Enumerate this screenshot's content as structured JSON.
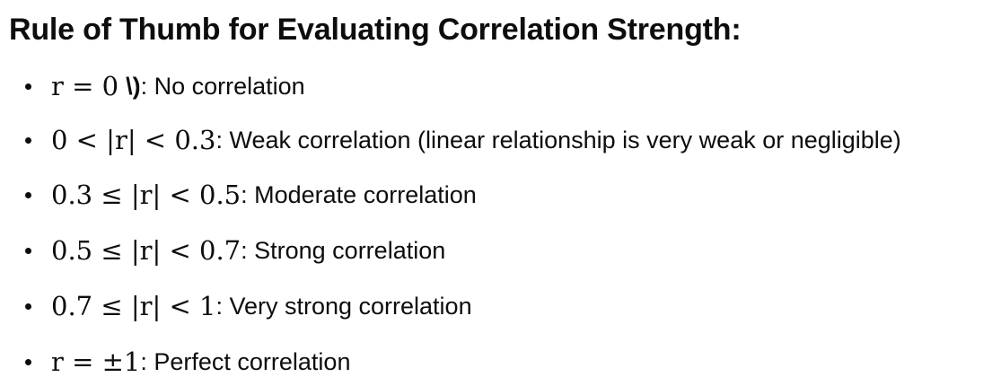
{
  "heading": "Rule of Thumb for Evaluating Correlation Strength:",
  "items": [
    {
      "math": "r = 0",
      "artifact": "\\)",
      "text": ": No correlation"
    },
    {
      "math": "0 < |r| < 0.3",
      "text": ": Weak correlation (linear relationship is very weak or negligible)"
    },
    {
      "math": "0.3 ≤ |r| < 0.5",
      "text": ": Moderate correlation"
    },
    {
      "math": "0.5 ≤ |r| < 0.7",
      "text": ": Strong correlation"
    },
    {
      "math": "0.7 ≤ |r| < 1",
      "text": ": Very strong correlation"
    },
    {
      "math": "r = ±1",
      "text": ": Perfect correlation"
    }
  ]
}
